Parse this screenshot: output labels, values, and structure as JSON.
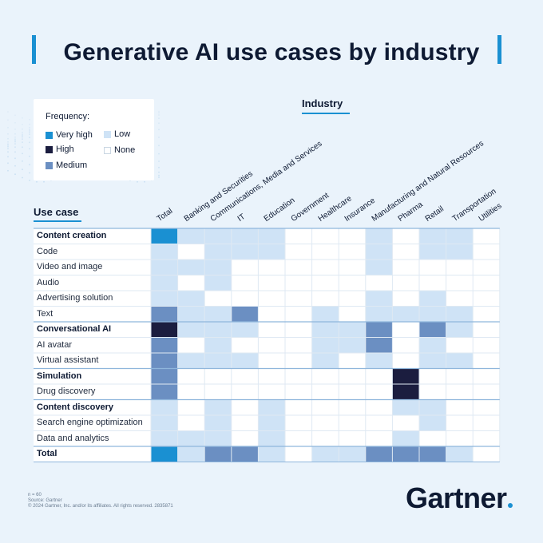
{
  "title": "Generative AI use cases by industry",
  "legend": {
    "title": "Frequency:",
    "items": [
      {
        "label": "Very high",
        "color": "#1a90d2"
      },
      {
        "label": "High",
        "color": "#1b1d3f"
      },
      {
        "label": "Medium",
        "color": "#6b8fc2"
      },
      {
        "label": "Low",
        "color": "#cfe3f6"
      },
      {
        "label": "None",
        "color": "#ffffff"
      }
    ]
  },
  "axis": {
    "industry_label": "Industry",
    "usecase_label": "Use case"
  },
  "chart_data": {
    "type": "heatmap",
    "title": "Generative AI use cases by industry",
    "xlabel": "Industry",
    "ylabel": "Use case",
    "columns": [
      "Total",
      "Banking and Securities",
      "Communications, Media and Services",
      "IT",
      "Education",
      "Government",
      "Healthcare",
      "Insurance",
      "Manufacturing and Natural Resources",
      "Pharma",
      "Retail",
      "Transportation",
      "Utilities"
    ],
    "levels": [
      "None",
      "Low",
      "Medium",
      "High",
      "Very high"
    ],
    "colors": [
      "#ffffff",
      "#cfe3f6",
      "#6b8fc2",
      "#1b1d3f",
      "#1a90d2"
    ],
    "rows": [
      {
        "label": "Content creation",
        "bold": true,
        "values": [
          4,
          1,
          1,
          1,
          1,
          0,
          0,
          0,
          1,
          0,
          1,
          1,
          0
        ]
      },
      {
        "label": "Code",
        "bold": false,
        "values": [
          1,
          0,
          1,
          1,
          1,
          0,
          0,
          0,
          1,
          0,
          1,
          1,
          0
        ]
      },
      {
        "label": "Video and image",
        "bold": false,
        "values": [
          1,
          1,
          1,
          0,
          0,
          0,
          0,
          0,
          1,
          0,
          0,
          0,
          0
        ]
      },
      {
        "label": "Audio",
        "bold": false,
        "values": [
          1,
          0,
          1,
          0,
          0,
          0,
          0,
          0,
          0,
          0,
          0,
          0,
          0
        ]
      },
      {
        "label": "Advertising solution",
        "bold": false,
        "values": [
          1,
          1,
          0,
          0,
          0,
          0,
          0,
          0,
          1,
          0,
          1,
          0,
          0
        ]
      },
      {
        "label": "Text",
        "bold": false,
        "values": [
          2,
          1,
          1,
          2,
          0,
          0,
          1,
          0,
          1,
          1,
          1,
          1,
          0
        ]
      },
      {
        "label": "Conversational AI",
        "bold": true,
        "values": [
          3,
          1,
          1,
          1,
          0,
          0,
          1,
          1,
          2,
          0,
          2,
          1,
          0
        ]
      },
      {
        "label": "AI avatar",
        "bold": false,
        "values": [
          2,
          0,
          1,
          0,
          0,
          0,
          1,
          1,
          2,
          0,
          1,
          0,
          0
        ]
      },
      {
        "label": "Virtual assistant",
        "bold": false,
        "values": [
          2,
          1,
          1,
          1,
          0,
          0,
          1,
          0,
          1,
          0,
          1,
          1,
          0
        ]
      },
      {
        "label": "Simulation",
        "bold": true,
        "values": [
          2,
          0,
          0,
          0,
          0,
          0,
          0,
          0,
          0,
          3,
          0,
          0,
          0
        ]
      },
      {
        "label": "Drug discovery",
        "bold": false,
        "values": [
          2,
          0,
          0,
          0,
          0,
          0,
          0,
          0,
          0,
          3,
          0,
          0,
          0
        ]
      },
      {
        "label": "Content discovery",
        "bold": true,
        "values": [
          1,
          0,
          1,
          0,
          1,
          0,
          0,
          0,
          0,
          1,
          1,
          0,
          0
        ]
      },
      {
        "label": "Search engine optimization",
        "bold": false,
        "values": [
          1,
          0,
          1,
          0,
          1,
          0,
          0,
          0,
          0,
          0,
          1,
          0,
          0
        ]
      },
      {
        "label": "Data and analytics",
        "bold": false,
        "values": [
          1,
          1,
          1,
          0,
          1,
          0,
          0,
          0,
          0,
          1,
          0,
          0,
          0
        ]
      },
      {
        "label": "Total",
        "bold": true,
        "values": [
          4,
          1,
          2,
          2,
          1,
          0,
          1,
          1,
          2,
          2,
          2,
          1,
          0
        ]
      }
    ]
  },
  "footnotes": [
    "n = 60",
    "Source: Gartner",
    "© 2024 Gartner, Inc. and/or its affiliates. All rights reserved. 2835871"
  ],
  "brand": "Gartner"
}
